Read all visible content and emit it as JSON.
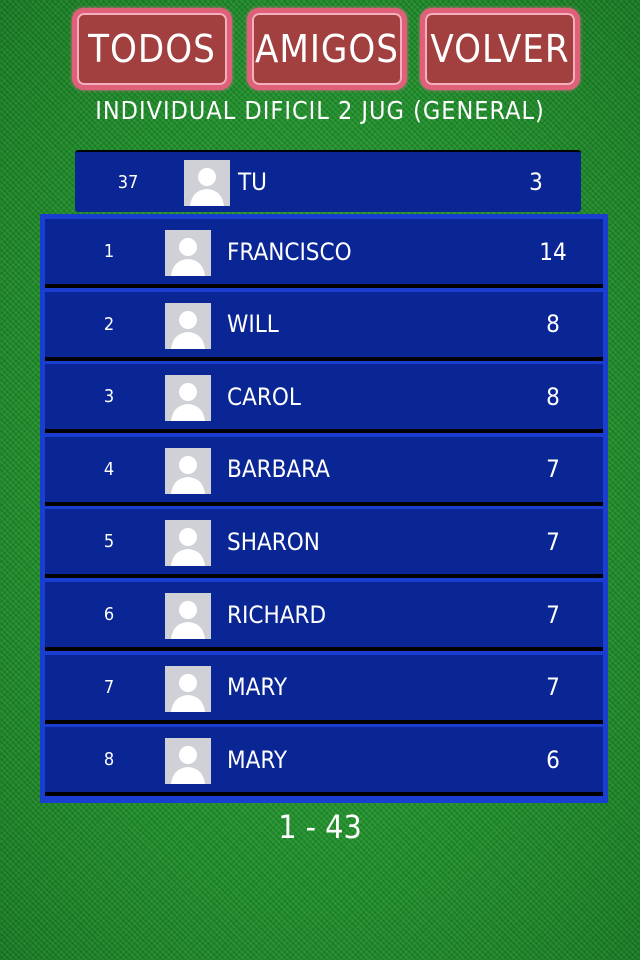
{
  "buttons": {
    "all": "TODOS",
    "friends": "AMIGOS",
    "back": "VOLVER"
  },
  "title": "INDIVIDUAL DIFICIL 2 JUG (GENERAL)",
  "me": {
    "rank": "37",
    "name": "TU",
    "score": "3"
  },
  "rows": [
    {
      "rank": "1",
      "name": "FRANCISCO",
      "score": "14"
    },
    {
      "rank": "2",
      "name": "WILL",
      "score": "8"
    },
    {
      "rank": "3",
      "name": "CAROL",
      "score": "8"
    },
    {
      "rank": "4",
      "name": "BARBARA",
      "score": "7"
    },
    {
      "rank": "5",
      "name": "SHARON",
      "score": "7"
    },
    {
      "rank": "6",
      "name": "RICHARD",
      "score": "7"
    },
    {
      "rank": "7",
      "name": "MARY",
      "score": "7"
    },
    {
      "rank": "8",
      "name": "MARY",
      "score": "6"
    }
  ],
  "pagination": "1 - 43"
}
